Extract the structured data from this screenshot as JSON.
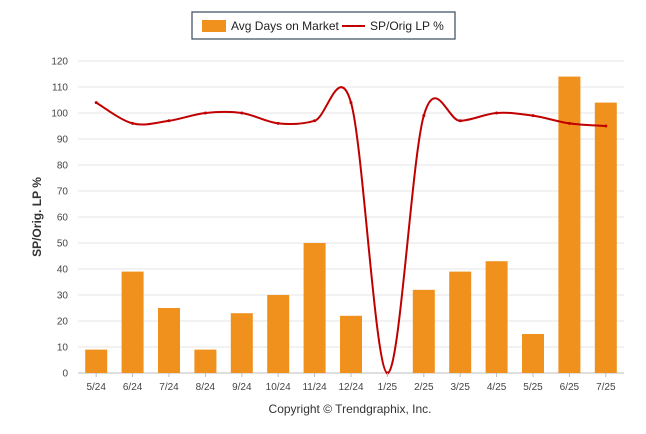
{
  "chart_data": {
    "type": "bar",
    "categories": [
      "5/24",
      "6/24",
      "7/24",
      "8/24",
      "9/24",
      "10/24",
      "11/24",
      "12/24",
      "1/25",
      "2/25",
      "3/25",
      "4/25",
      "5/25",
      "6/25",
      "7/25"
    ],
    "series": [
      {
        "name": "Avg Days on Market",
        "type": "bar",
        "color": "#f0911e",
        "values": [
          9,
          39,
          25,
          9,
          23,
          30,
          50,
          22,
          null,
          32,
          39,
          43,
          15,
          114,
          104
        ]
      },
      {
        "name": "SP/Orig LP %",
        "type": "line",
        "color": "#c00000",
        "values": [
          104,
          96,
          97,
          100,
          100,
          96,
          97,
          104,
          0,
          99,
          97,
          100,
          99,
          96,
          95
        ]
      }
    ],
    "ylabel": "SP/Orig. LP %",
    "ylim": [
      0,
      120
    ],
    "yticks": [
      0,
      10,
      20,
      30,
      40,
      50,
      60,
      70,
      80,
      90,
      100,
      110,
      120
    ],
    "grid": true,
    "legend_position": "top-center"
  },
  "footer": {
    "copyright": "Copyright © Trendgraphix, Inc."
  }
}
